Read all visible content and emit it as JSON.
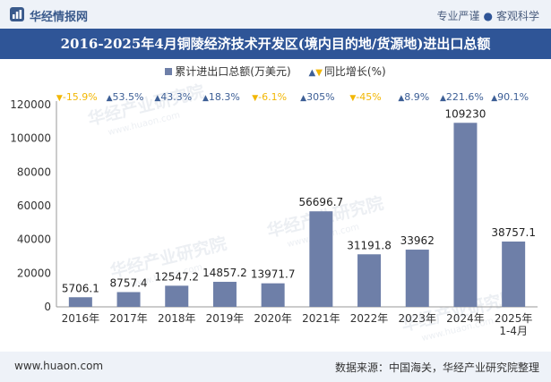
{
  "header": {
    "brand": "华经情报网",
    "tagline_left": "专业严谨",
    "tagline_right": "客观科学",
    "logo_icon": "hj-logo-icon"
  },
  "title": "2016-2025年4月铜陵经济技术开发区(境内目的地/货源地)进出口总额",
  "legend": {
    "bar_label": "累计进出口总额(万美元)",
    "growth_label": "同比增长(%)"
  },
  "watermark": {
    "cn": "华经产业研究院",
    "url": "www.huaon.com"
  },
  "footer": {
    "site": "www.huaon.com",
    "source": "数据来源：中国海关，华经产业研究院整理"
  },
  "colors": {
    "bar": "#6e7fa8",
    "up": "#3d5f96",
    "down": "#f2b705",
    "title_bg": "#2f5597",
    "band_bg": "#eef2f8"
  },
  "chart_data": {
    "type": "bar",
    "categories": [
      "2016年",
      "2017年",
      "2018年",
      "2019年",
      "2020年",
      "2021年",
      "2022年",
      "2023年",
      "2024年",
      "2025年\n1-4月"
    ],
    "series": [
      {
        "name": "累计进出口总额(万美元)",
        "values": [
          5706.1,
          8757.4,
          12547.2,
          14857.2,
          13971.7,
          56696.7,
          31191.8,
          33962,
          109230,
          38757.1
        ],
        "labels": [
          "5706.1",
          "8757.4",
          "12547.2",
          "14857.2",
          "13971.7",
          "56696.7",
          "31191.8",
          "33962",
          "109230",
          "38757.1"
        ]
      },
      {
        "name": "同比增长(%)",
        "labels": [
          "-15.9%",
          "53.5%",
          "43.3%",
          "18.3%",
          "-6.1%",
          "305%",
          "-45%",
          "8.9%",
          "221.6%",
          "90.1%"
        ],
        "directions": [
          "down",
          "up",
          "up",
          "up",
          "down",
          "up",
          "down",
          "up",
          "up",
          "up"
        ]
      }
    ],
    "ylim": [
      0,
      120000
    ],
    "yticks": [
      "0",
      "20000",
      "40000",
      "60000",
      "80000",
      "100000",
      "120000"
    ],
    "grid": false,
    "legend_position": "top"
  }
}
